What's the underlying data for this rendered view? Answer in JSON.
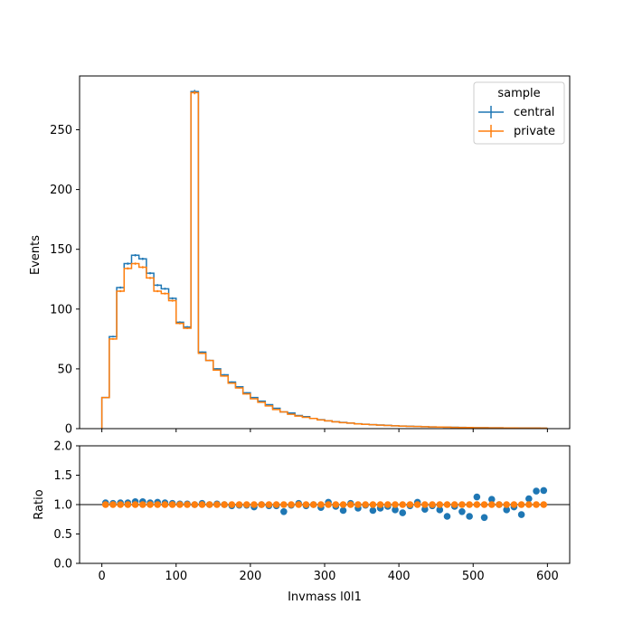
{
  "chart_data": [
    {
      "type": "histogram",
      "panel": "main",
      "ylabel": "Events",
      "xlim": [
        -30,
        630
      ],
      "ylim": [
        0,
        295
      ],
      "yticks": [
        0,
        50,
        100,
        150,
        200,
        250
      ],
      "xticks": [
        0,
        100,
        200,
        300,
        400,
        500,
        600
      ],
      "bin_edges": [
        0,
        10,
        20,
        30,
        40,
        50,
        60,
        70,
        80,
        90,
        100,
        110,
        120,
        130,
        140,
        150,
        160,
        170,
        180,
        190,
        200,
        210,
        220,
        230,
        240,
        250,
        260,
        270,
        280,
        290,
        300,
        310,
        320,
        330,
        340,
        350,
        360,
        370,
        380,
        390,
        400,
        410,
        420,
        430,
        440,
        450,
        460,
        470,
        480,
        490,
        500,
        510,
        520,
        530,
        540,
        550,
        560,
        570,
        580,
        590,
        600
      ],
      "legend": {
        "title": "sample",
        "placement": "top-right"
      },
      "series": [
        {
          "name": "central",
          "color": "#1f77b4",
          "values": [
            26,
            77,
            118,
            138,
            145,
            142,
            130,
            120,
            117,
            109,
            89,
            85,
            282,
            64,
            57,
            50,
            45,
            39,
            35,
            30,
            26,
            23,
            20,
            17,
            14,
            13,
            11,
            10,
            8.5,
            7.5,
            6.5,
            5.8,
            5.2,
            4.6,
            4.1,
            3.7,
            3.3,
            3.0,
            2.7,
            2.4,
            2.2,
            2.0,
            1.8,
            1.6,
            1.4,
            1.3,
            1.2,
            1.1,
            1.0,
            0.9,
            0.8,
            0.75,
            0.7,
            0.65,
            0.6,
            0.55,
            0.5,
            0.5,
            0.45,
            0.4
          ]
        },
        {
          "name": "private",
          "color": "#ff7f0e",
          "values": [
            26,
            75,
            115,
            134,
            138,
            135,
            126,
            115,
            113,
            107,
            88,
            84,
            281,
            63,
            57,
            49,
            44,
            38,
            34,
            29,
            25,
            22,
            19,
            16,
            14,
            12,
            10.5,
            9.5,
            8.5,
            7.3,
            6.5,
            5.7,
            5.0,
            4.6,
            4.0,
            3.6,
            3.3,
            2.9,
            2.6,
            2.4,
            2.1,
            1.9,
            1.8,
            1.6,
            1.4,
            1.3,
            1.2,
            1.05,
            0.95,
            0.9,
            0.8,
            0.75,
            0.7,
            0.65,
            0.6,
            0.55,
            0.5,
            0.5,
            0.45,
            0.4
          ]
        }
      ]
    },
    {
      "type": "scatter",
      "panel": "ratio",
      "xlabel": "Invmass l0l1",
      "ylabel": "Ratio",
      "xlim": [
        -30,
        630
      ],
      "ylim": [
        0,
        2
      ],
      "yticks": [
        "0.0",
        "0.5",
        "1.0",
        "1.5",
        "2.0"
      ],
      "reference_line": 1.0,
      "x": [
        5,
        15,
        25,
        35,
        45,
        55,
        65,
        75,
        85,
        95,
        105,
        115,
        125,
        135,
        145,
        155,
        165,
        175,
        185,
        195,
        205,
        215,
        225,
        235,
        245,
        255,
        265,
        275,
        285,
        295,
        305,
        315,
        325,
        335,
        345,
        355,
        365,
        375,
        385,
        395,
        405,
        415,
        425,
        435,
        445,
        455,
        465,
        475,
        485,
        495,
        505,
        515,
        525,
        535,
        545,
        555,
        565,
        575,
        585,
        595
      ],
      "series": [
        {
          "name": "central",
          "color": "#1f77b4",
          "values": [
            1.03,
            1.02,
            1.03,
            1.03,
            1.05,
            1.05,
            1.03,
            1.04,
            1.03,
            1.02,
            1.01,
            1.01,
            1.0,
            1.02,
            1.0,
            1.01,
            1.0,
            0.98,
            0.99,
            0.99,
            0.96,
            1.0,
            0.98,
            0.98,
            0.88,
            0.99,
            1.02,
            0.98,
            1.0,
            0.95,
            1.04,
            0.97,
            0.9,
            1.02,
            0.94,
            0.99,
            0.9,
            0.94,
            0.97,
            0.91,
            0.86,
            0.98,
            1.04,
            0.92,
            0.98,
            0.91,
            0.8,
            0.97,
            0.88,
            0.8,
            1.13,
            0.78,
            1.09,
            1.0,
            0.91,
            0.96,
            0.83,
            1.1,
            1.23,
            1.24
          ]
        },
        {
          "name": "private",
          "color": "#ff7f0e",
          "values": [
            1.0,
            1.0,
            1.0,
            1.0,
            1.0,
            1.0,
            1.0,
            1.0,
            1.0,
            1.0,
            1.0,
            1.0,
            1.0,
            1.0,
            1.0,
            1.0,
            1.0,
            1.0,
            1.0,
            1.0,
            1.0,
            1.0,
            1.0,
            1.0,
            1.0,
            1.0,
            1.0,
            1.0,
            1.0,
            1.0,
            1.0,
            1.0,
            1.0,
            1.0,
            1.0,
            1.0,
            1.0,
            1.0,
            1.0,
            1.0,
            1.0,
            1.0,
            1.0,
            1.0,
            1.0,
            1.0,
            1.0,
            1.0,
            1.0,
            1.0,
            1.0,
            1.0,
            1.0,
            1.0,
            1.0,
            1.0,
            1.0,
            1.0,
            1.0,
            1.0
          ]
        }
      ]
    }
  ]
}
